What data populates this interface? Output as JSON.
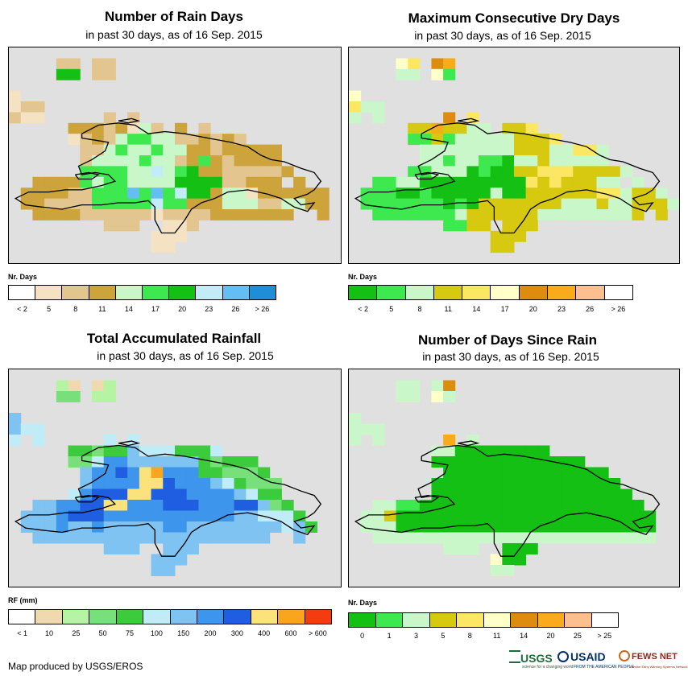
{
  "panels": [
    {
      "id": "rain-days",
      "title": "Number of Rain Days",
      "subtitle": "in past 30 days, as of 16 Sep. 2015",
      "legend_title": "Nr. Days",
      "legend_colors": [
        "#ffffff",
        "#f5e2c3",
        "#e3c58f",
        "#cda33c",
        "#c9f7c9",
        "#3ee84f",
        "#13c013",
        "#c2ecf8",
        "#64bdf3",
        "#1f8ed6"
      ],
      "legend_labels": [
        "< 2",
        "5",
        "8",
        "11",
        "14",
        "17",
        "20",
        "23",
        "26",
        "> 26"
      ],
      "palette": [
        "#f5e2c3",
        "#e3c58f",
        "#cda33c",
        "#c9f7c9",
        "#3ee84f",
        "#13c013",
        "#c2ecf8",
        "#64bdf3"
      ],
      "grid": [
        "............................",
        "....11.11...................",
        "....55.11...................",
        "........................... ",
        "0...........................",
        "011.........................",
        "100.....1.1.................",
        ".....22212031.2.1...........",
        ".....012134433112121........",
        "......11343343322122222.....",
        "......13333433124212222.....",
        "......444433634522111112....",
        "..222243443333555511222.2...",
        ".22221144474746552330222222.",
        ".22111144444644222333113322.",
        "..2222111111011112222222..2.",
        "........111..001............",
        "............000.............",
        "............00..............",
        "............................"
      ]
    },
    {
      "id": "dry-days",
      "title": "Maximum Consecutive Dry Days",
      "subtitle": "in past 30 days, as of 16 Sep. 2015",
      "legend_title": "Nr. Days",
      "legend_colors": [
        "#13c013",
        "#3ee84f",
        "#c9f7c9",
        "#d7c90f",
        "#fbe763",
        "#ffffca",
        "#dd8c10",
        "#f9ac1b",
        "#fbbf90",
        "#ffffff"
      ],
      "legend_labels": [
        "< 2",
        "5",
        "8",
        "11",
        "14",
        "17",
        "20",
        "23",
        "26",
        "> 26"
      ],
      "palette": [
        "#13c013",
        "#3ee84f",
        "#c9f7c9",
        "#d7c90f",
        "#fbe763",
        "#ffffca",
        "#dd8c10",
        "#f9ac1b"
      ],
      "grid": [
        "............................",
        "....54.67...................",
        "....22.51...................",
        "............................",
        "5...........................",
        "422.........................",
        "2.2.....6.4.................",
        ".....3373322.334............",
        ".....1131222223334..........",
        "......2222222233322442......",
        "......2212211022322222......",
        ".....1122201003344433332....",
        "..112200000000043433322.2...",
        ".11100100000200333333442332.",
        ".111111101033333332223223332",
        "..11111112333333222222223.3.",
        "........1133.333............",
        "............333.............",
        "............33..............",
        "............................"
      ]
    },
    {
      "id": "rainfall",
      "title": "Total Accumulated Rainfall",
      "subtitle": "in past 30 days, as of 16 Sep. 2015",
      "legend_title": "RF (mm)",
      "legend_colors": [
        "#ffffff",
        "#f0d9ae",
        "#b5f4a2",
        "#78e07a",
        "#3ccb3c",
        "#c0ecf8",
        "#7fc3f2",
        "#3e95ec",
        "#1f5ee0",
        "#fbe27a",
        "#f9a51d",
        "#f43c10"
      ],
      "legend_labels": [
        "< 1",
        "10",
        "25",
        "50",
        "75",
        "100",
        "150",
        "200",
        "300",
        "400",
        "600",
        "> 600"
      ],
      "palette": [
        "#f0d9ae",
        "#b5f4a2",
        "#78e07a",
        "#3ccb3c",
        "#c0ecf8",
        "#7fc3f2",
        "#3e95ec",
        "#1f5ee0",
        "#fbe27a",
        "#f9a51d"
      ],
      "grid": [
        "............................",
        "....10.01...................",
        "....22.11...................",
        "............................",
        "5...........................",
        "544.........................",
        "4.4.....4.4.................",
        ".....3323354443334...........",
        ".....2246655555532333........",
        "......5667689666332223......",
        "......56666887666543222.....",
        ".....467778877766665433.....",
        "..5566778866677766677523....",
        ".555677766666666666554443...",
        ".5556556555556655555555453..",
        "..55555555555555555555..5...",
        "........555..555............",
        "............555.............",
        "............55..............",
        "............................"
      ]
    },
    {
      "id": "since-rain",
      "title": "Number of Days Since Rain",
      "subtitle": "in past 30 days, as of 16 Sep. 2015",
      "legend_title": "Nr. Days",
      "legend_colors": [
        "#13c013",
        "#3ee84f",
        "#c9f7c9",
        "#d7c90f",
        "#fbe763",
        "#ffffca",
        "#dd8c10",
        "#f9ac1b",
        "#fbbf90",
        "#ffffff"
      ],
      "legend_labels": [
        "0",
        "1",
        "3",
        "5",
        "8",
        "11",
        "14",
        "20",
        "25",
        "> 25"
      ],
      "palette": [
        "#13c013",
        "#3ee84f",
        "#c9f7c9",
        "#d7c90f",
        "#fbe763",
        "#ffffca",
        "#dd8c10",
        "#f9ac1b"
      ],
      "grid": [
        "............................",
        "....22.26...................",
        "....22.52...................",
        "............................",
        "2...........................",
        "222.........................",
        "2.2.....7.2.................",
        ".......2200000000...........",
        ".......0000000000000........",
        "........00000000000000......",
        ".......0000000000000000.....",
        ".......00000000000000000....",
        "..22110000000000000000000...",
        ".2230000000000000000000000..",
        ".2220000000000000000000000..",
        "..222222222222222222222222..",
        "........222..000............",
        "............500.............",
        "............22..............",
        "............................"
      ]
    }
  ],
  "footer": {
    "credit": "Map produced by USGS/EROS"
  },
  "logos": {
    "usgs": "USGS",
    "usgs_tag": "science for a changing world",
    "usaid": "USAID",
    "usaid_tag": "FROM THE AMERICAN PEOPLE",
    "fews": "FEWS NET",
    "fews_tag": "Famine Early Warning Systems Network"
  }
}
